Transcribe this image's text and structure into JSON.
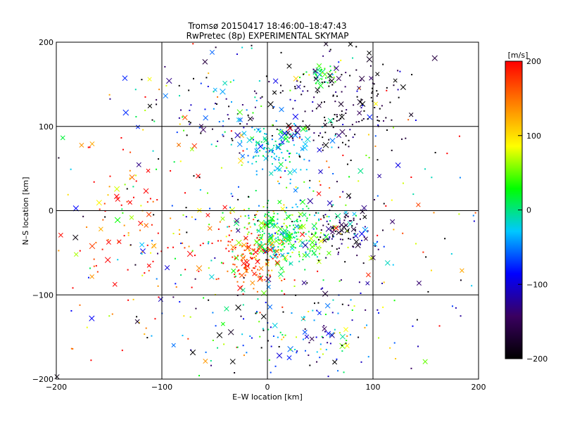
{
  "chart_data": {
    "type": "scatter",
    "title": "Tromsø 20150417 18:46:00–18:47:43",
    "subtitle": "RwPretec (8p) EXPERIMENTAL SKYMAP",
    "xlabel": "E–W location [km]",
    "ylabel": "N–S location [km]",
    "xlim": [
      -200,
      200
    ],
    "ylim": [
      -200,
      200
    ],
    "xticks": [
      "−200",
      "−100",
      "0",
      "100",
      "200"
    ],
    "yticks": [
      "200",
      "100",
      "0",
      "−100",
      "−200"
    ],
    "grid": true,
    "colorbar": {
      "label": "[m/s]",
      "min": -200,
      "max": 200,
      "ticks": [
        "200",
        "100",
        "0",
        "−100",
        "−200"
      ],
      "colormap": [
        "#000000",
        "#3a0060",
        "#0000ff",
        "#00c8ff",
        "#00ff00",
        "#ffff00",
        "#ff8000",
        "#ff0000"
      ]
    },
    "marker_types": [
      "dot",
      "x"
    ],
    "clusters": [
      {
        "cx": 8,
        "cy": 75,
        "sx": 18,
        "sy": 14,
        "n": 130,
        "v": -25,
        "vs": 25
      },
      {
        "cx": 50,
        "cy": 162,
        "sx": 7,
        "sy": 5,
        "n": 40,
        "v": 30,
        "vs": 25
      },
      {
        "cx": 15,
        "cy": -30,
        "sx": 22,
        "sy": 20,
        "n": 330,
        "v": 25,
        "vs": 40
      },
      {
        "cx": -15,
        "cy": -55,
        "sx": 14,
        "sy": 18,
        "n": 120,
        "v": 180,
        "vs": 30
      },
      {
        "cx": 70,
        "cy": -25,
        "sx": 20,
        "sy": 15,
        "n": 90,
        "v": -150,
        "vs": 40
      },
      {
        "cx": 65,
        "cy": 125,
        "sx": 35,
        "sy": 30,
        "n": 180,
        "v": -180,
        "vs": 50
      },
      {
        "cx": -55,
        "cy": 120,
        "sx": 35,
        "sy": 25,
        "n": 80,
        "v": -80,
        "vs": 90
      },
      {
        "cx": 35,
        "cy": -140,
        "sx": 45,
        "sy": 30,
        "n": 150,
        "v": -60,
        "vs": 100
      },
      {
        "cx": -130,
        "cy": -40,
        "sx": 40,
        "sy": 55,
        "n": 110,
        "v": 170,
        "vs": 60
      },
      {
        "cx": 0,
        "cy": 0,
        "sx": 110,
        "sy": 110,
        "n": 420,
        "v": 0,
        "vs": 160
      }
    ]
  }
}
